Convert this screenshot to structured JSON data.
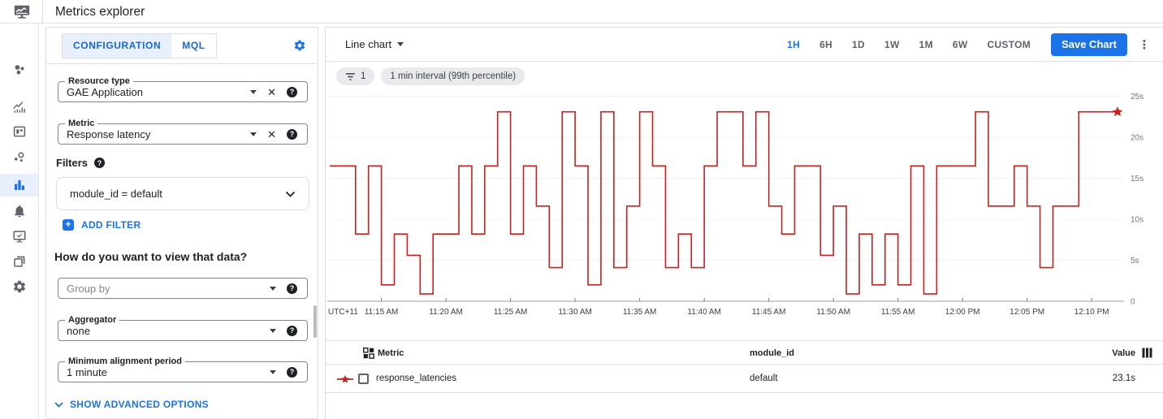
{
  "topbar": {
    "title": "Metrics explorer"
  },
  "sidebar": {
    "items": [
      {
        "name": "monitoring-home",
        "icon": "cluster",
        "active": false
      },
      {
        "name": "overview",
        "icon": "trend",
        "active": false
      },
      {
        "name": "dashboards",
        "icon": "dashboard",
        "active": false
      },
      {
        "name": "services",
        "icon": "services",
        "active": false
      },
      {
        "name": "metrics-explorer",
        "icon": "bars",
        "active": true
      },
      {
        "name": "alerting",
        "icon": "bell",
        "active": false
      },
      {
        "name": "uptime-checks",
        "icon": "uptime",
        "active": false
      },
      {
        "name": "groups",
        "icon": "groups",
        "active": false
      },
      {
        "name": "settings",
        "icon": "gear",
        "active": false
      }
    ]
  },
  "config": {
    "tabs": [
      {
        "label": "CONFIGURATION",
        "active": true
      },
      {
        "label": "MQL",
        "active": false
      }
    ],
    "resource_type": {
      "label": "Resource type",
      "value": "GAE Application"
    },
    "metric": {
      "label": "Metric",
      "value": "Response latency"
    },
    "filters_label": "Filters",
    "filter": {
      "value": "module_id = default"
    },
    "add_filter_label": "ADD FILTER",
    "view_heading": "How do you want to view that data?",
    "group_by": {
      "placeholder": "Group by"
    },
    "aggregator": {
      "label": "Aggregator",
      "value": "none"
    },
    "min_alignment": {
      "label": "Minimum alignment period",
      "value": "1 minute"
    },
    "show_advanced_label": "SHOW ADVANCED OPTIONS"
  },
  "chart_header": {
    "chart_type_label": "Line chart",
    "time_ranges": [
      "1H",
      "6H",
      "1D",
      "1W",
      "1M",
      "6W",
      "CUSTOM"
    ],
    "active_time_range": "1H",
    "save_button_label": "Save Chart"
  },
  "chips": {
    "filter_count": "1",
    "interval_label": "1 min interval (99th percentile)"
  },
  "chart_data": {
    "type": "line",
    "line_style": "step",
    "unit": "s",
    "ylim": [
      0,
      25.5
    ],
    "gridlines": true,
    "legend": "table-below",
    "x_prefix_label": "UTC+11",
    "start_time": "11:11 AM",
    "interval_minutes": 1,
    "y_ticks": [
      {
        "value": 25,
        "label": "25s"
      },
      {
        "value": 20,
        "label": "20s"
      },
      {
        "value": 15,
        "label": "15s"
      },
      {
        "value": 10,
        "label": "10s"
      },
      {
        "value": 5,
        "label": "5s"
      },
      {
        "value": 0,
        "label": "0"
      }
    ],
    "x_ticks": [
      {
        "minute": 4,
        "label": "11:15 AM"
      },
      {
        "minute": 9,
        "label": "11:20 AM"
      },
      {
        "minute": 14,
        "label": "11:25 AM"
      },
      {
        "minute": 19,
        "label": "11:30 AM"
      },
      {
        "minute": 24,
        "label": "11:35 AM"
      },
      {
        "minute": 29,
        "label": "11:40 AM"
      },
      {
        "minute": 34,
        "label": "11:45 AM"
      },
      {
        "minute": 39,
        "label": "11:50 AM"
      },
      {
        "minute": 44,
        "label": "11:55 AM"
      },
      {
        "minute": 49,
        "label": "12:00 PM"
      },
      {
        "minute": 54,
        "label": "12:05 PM"
      },
      {
        "minute": 59,
        "label": "12:10 PM"
      }
    ],
    "series": [
      {
        "name": "response_latencies",
        "color": "#c5221f",
        "end_marker": "star",
        "values": [
          16.5,
          16.5,
          8.2,
          16.5,
          2,
          8.2,
          5.6,
          0.9,
          8.2,
          8.2,
          16.5,
          8.2,
          16.5,
          23.1,
          8.2,
          16.5,
          11.6,
          4.1,
          23.1,
          16.5,
          2,
          23.1,
          4.1,
          11.6,
          23.1,
          16.5,
          4.1,
          8.2,
          4.1,
          16.5,
          23.1,
          23.1,
          16.5,
          23.1,
          11.6,
          8.2,
          16.5,
          16.5,
          5.6,
          11.6,
          0.9,
          8.2,
          2,
          8.2,
          2,
          16.5,
          0.9,
          16.5,
          16.5,
          16.5,
          23.1,
          11.6,
          11.6,
          16.5,
          11.6,
          4.1,
          11.6,
          11.6,
          23.1,
          23.1,
          23.1,
          23.1
        ]
      }
    ]
  },
  "table": {
    "columns": [
      "Metric",
      "module_id",
      "Value"
    ],
    "rows": [
      {
        "metric": "response_latencies",
        "module_id": "default",
        "value": "23.1s",
        "series_color": "#c5221f",
        "checked": false
      }
    ]
  }
}
